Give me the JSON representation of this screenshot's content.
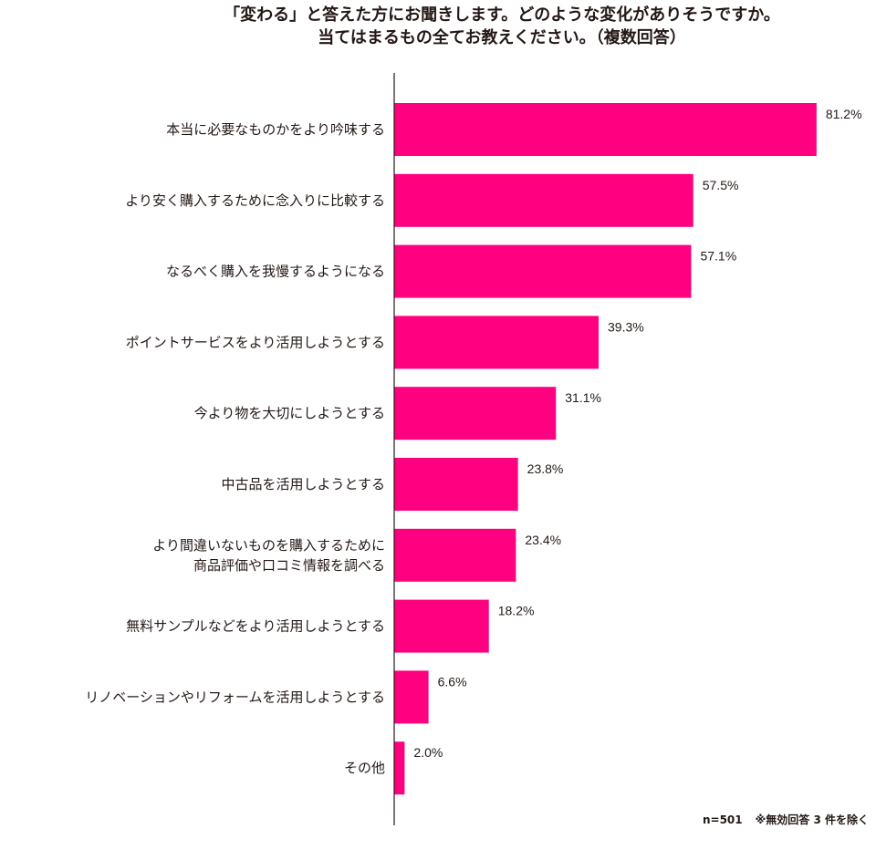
{
  "title_lines": [
    "「変わる」と答えた方にお聞きします。どのような変化がありそうですか。",
    "当てはまるもの全てお教えください。（複数回答）"
  ],
  "note": {
    "n": "n=501",
    "exclusion": "※無効回答 3 件を除く"
  },
  "colors": {
    "bar": "#ff0080",
    "axis": "#231815",
    "text": "#231815"
  },
  "chart_data": {
    "type": "bar",
    "orientation": "horizontal",
    "unit": "%",
    "xlim": [
      0,
      100
    ],
    "categories": [
      [
        "本当に必要なものかをより吟味する"
      ],
      [
        "より安く購入するために念入りに比較する"
      ],
      [
        "なるべく購入を我慢するようになる"
      ],
      [
        "ポイントサービスをより活用しようとする"
      ],
      [
        "今より物を大切にしようとする"
      ],
      [
        "中古品を活用しようとする"
      ],
      [
        "より間違いないものを購入するために",
        "商品評価や口コミ情報を調べる"
      ],
      [
        "無料サンプルなどをより活用しようとする"
      ],
      [
        "リノベーションやリフォームを活用しようとする"
      ],
      [
        "その他"
      ]
    ],
    "values": [
      81.2,
      57.5,
      57.1,
      39.3,
      31.1,
      23.8,
      23.4,
      18.2,
      6.6,
      2.0
    ],
    "value_labels": [
      "81.2%",
      "57.5%",
      "57.1%",
      "39.3%",
      "31.1%",
      "23.8%",
      "23.4%",
      "18.2%",
      "6.6%",
      "2.0%"
    ]
  }
}
